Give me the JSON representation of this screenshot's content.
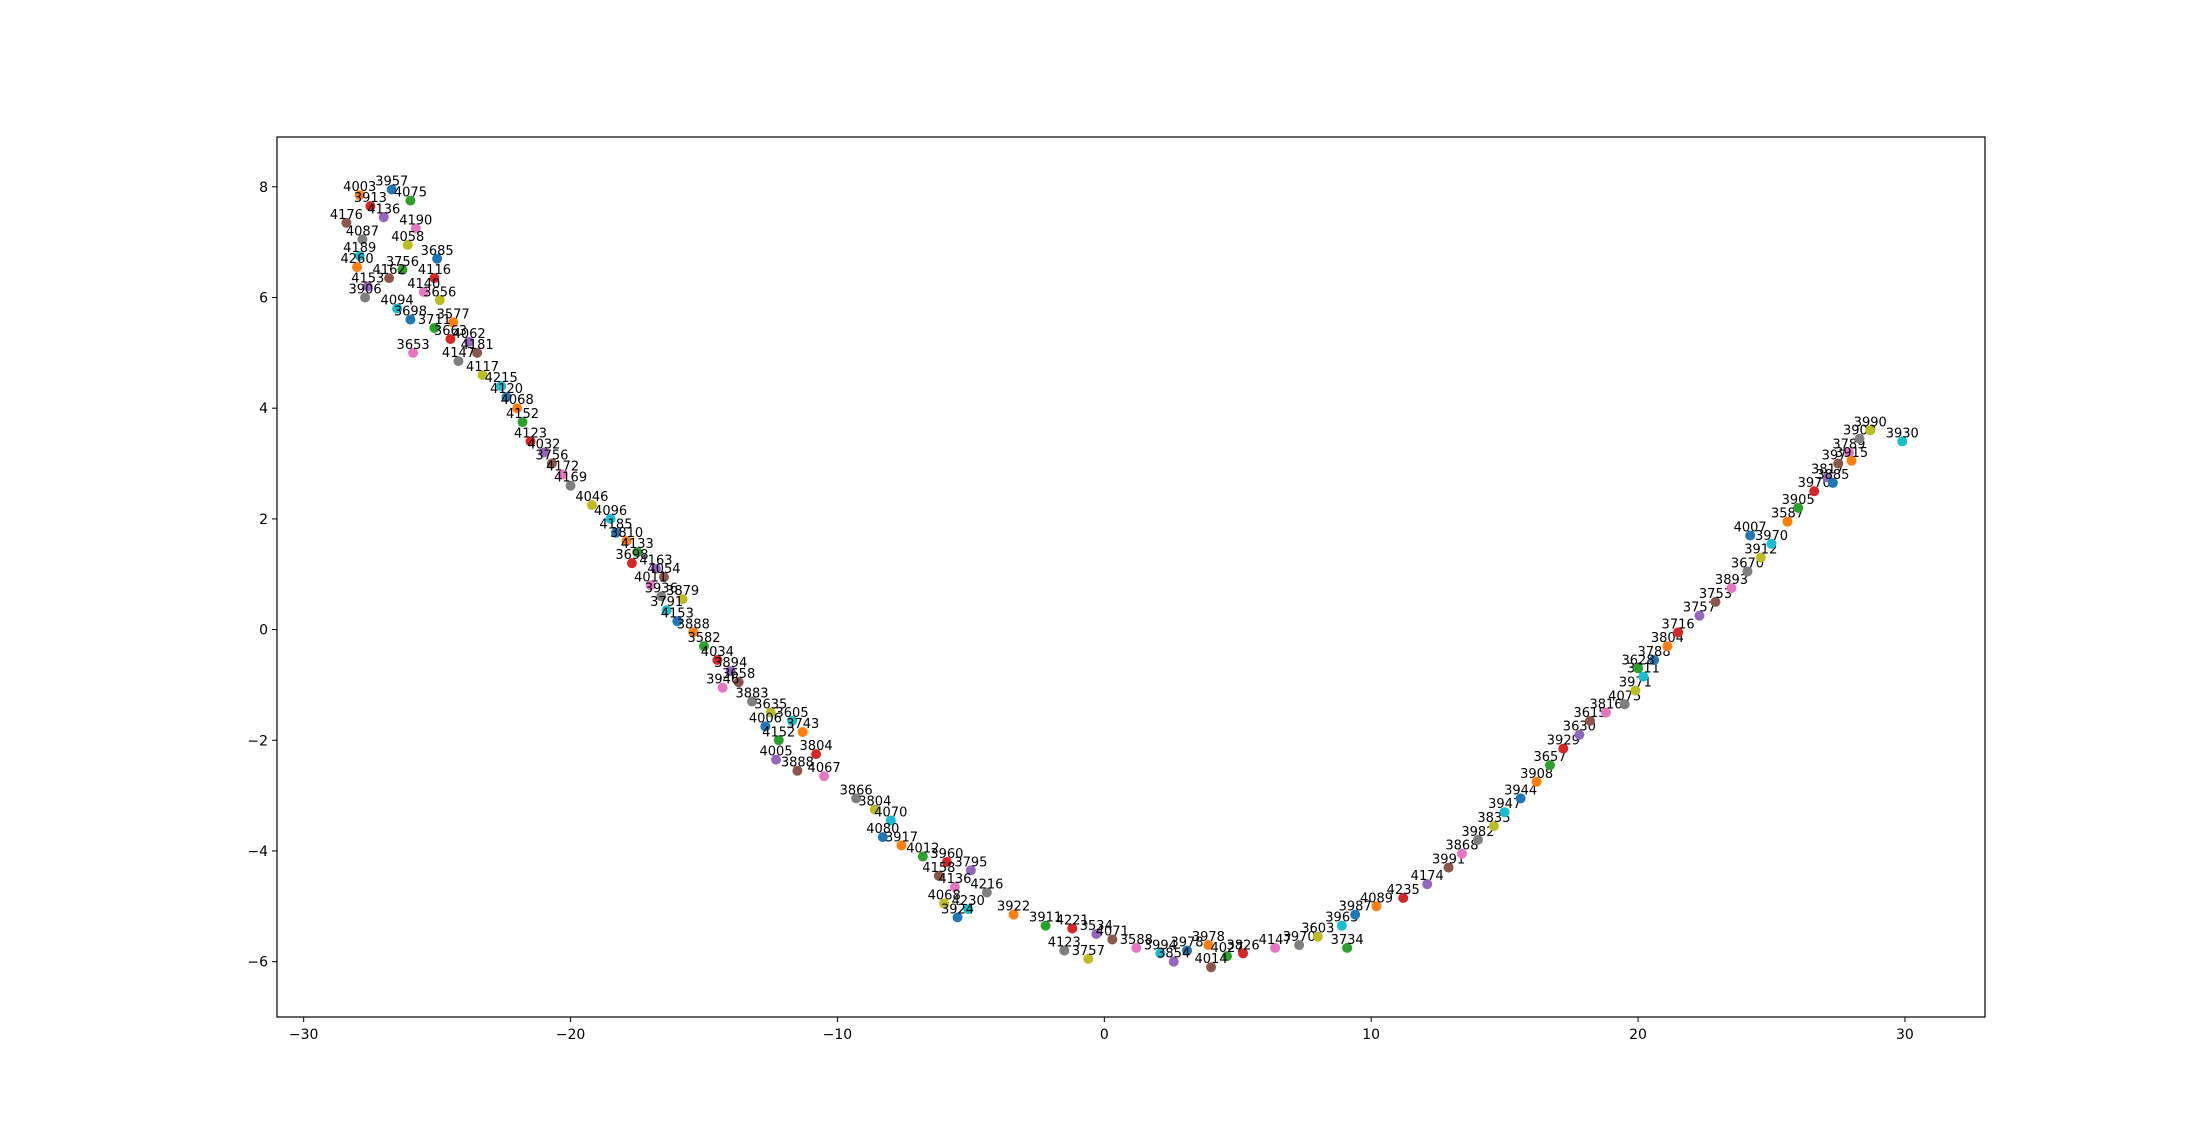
{
  "chart_data": {
    "type": "scatter",
    "title": "",
    "xlabel": "",
    "ylabel": "",
    "xlim": [
      -31,
      33
    ],
    "ylim": [
      -7,
      8.9
    ],
    "x_ticks": [
      -30,
      -20,
      -10,
      0,
      10,
      20,
      30
    ],
    "y_ticks": [
      -6,
      -4,
      -2,
      0,
      2,
      4,
      6,
      8
    ],
    "grid": false,
    "legend": "none",
    "palette": [
      "#1f77b4",
      "#ff7f0e",
      "#2ca02c",
      "#d62728",
      "#9467bd",
      "#8c564b",
      "#e377c2",
      "#7f7f7f",
      "#bcbd22",
      "#17becf"
    ],
    "points": [
      {
        "x": -26.7,
        "y": 7.95,
        "label": "3957"
      },
      {
        "x": -27.9,
        "y": 7.85,
        "label": "4003"
      },
      {
        "x": -26.0,
        "y": 7.75,
        "label": "4075"
      },
      {
        "x": -27.5,
        "y": 7.65,
        "label": "3913"
      },
      {
        "x": -27.0,
        "y": 7.45,
        "label": "4136"
      },
      {
        "x": -28.4,
        "y": 7.35,
        "label": "4176"
      },
      {
        "x": -25.8,
        "y": 7.25,
        "label": "4190"
      },
      {
        "x": -27.8,
        "y": 7.05,
        "label": "4087"
      },
      {
        "x": -26.1,
        "y": 6.95,
        "label": "4058"
      },
      {
        "x": -27.9,
        "y": 6.75,
        "label": "4189"
      },
      {
        "x": -25.0,
        "y": 6.7,
        "label": "3685"
      },
      {
        "x": -28.0,
        "y": 6.55,
        "label": "4260"
      },
      {
        "x": -26.3,
        "y": 6.5,
        "label": "3756"
      },
      {
        "x": -25.1,
        "y": 6.35,
        "label": "4116"
      },
      {
        "x": -27.6,
        "y": 6.2,
        "label": "4153"
      },
      {
        "x": -26.8,
        "y": 6.35,
        "label": "4162"
      },
      {
        "x": -25.5,
        "y": 6.1,
        "label": "4140"
      },
      {
        "x": -27.7,
        "y": 6.0,
        "label": "3906"
      },
      {
        "x": -24.9,
        "y": 5.95,
        "label": "3656"
      },
      {
        "x": -26.5,
        "y": 5.8,
        "label": "4094"
      },
      {
        "x": -26.0,
        "y": 5.6,
        "label": "3698"
      },
      {
        "x": -24.4,
        "y": 5.55,
        "label": "3577"
      },
      {
        "x": -25.1,
        "y": 5.45,
        "label": "3711"
      },
      {
        "x": -24.5,
        "y": 5.25,
        "label": "3663"
      },
      {
        "x": -23.8,
        "y": 5.2,
        "label": "4062"
      },
      {
        "x": -23.5,
        "y": 5.0,
        "label": "4181"
      },
      {
        "x": -25.9,
        "y": 5.0,
        "label": "3653"
      },
      {
        "x": -24.2,
        "y": 4.85,
        "label": "4147"
      },
      {
        "x": -23.3,
        "y": 4.6,
        "label": "4117"
      },
      {
        "x": -22.6,
        "y": 4.4,
        "label": "4215"
      },
      {
        "x": -22.4,
        "y": 4.2,
        "label": "4120"
      },
      {
        "x": -22.0,
        "y": 4.0,
        "label": "4068"
      },
      {
        "x": -21.8,
        "y": 3.75,
        "label": "4152"
      },
      {
        "x": -21.5,
        "y": 3.4,
        "label": "4123"
      },
      {
        "x": -21.0,
        "y": 3.2,
        "label": "4032"
      },
      {
        "x": -20.7,
        "y": 3.0,
        "label": "3756"
      },
      {
        "x": -20.3,
        "y": 2.8,
        "label": "4172"
      },
      {
        "x": -20.0,
        "y": 2.6,
        "label": "4169"
      },
      {
        "x": -19.2,
        "y": 2.25,
        "label": "4046"
      },
      {
        "x": -18.5,
        "y": 2.0,
        "label": "4096"
      },
      {
        "x": -18.3,
        "y": 1.75,
        "label": "4185"
      },
      {
        "x": -17.9,
        "y": 1.6,
        "label": "3810"
      },
      {
        "x": -17.5,
        "y": 1.4,
        "label": "4133"
      },
      {
        "x": -17.7,
        "y": 1.2,
        "label": "3698"
      },
      {
        "x": -16.8,
        "y": 1.1,
        "label": "4163"
      },
      {
        "x": -16.5,
        "y": 0.95,
        "label": "4054"
      },
      {
        "x": -17.0,
        "y": 0.8,
        "label": "4011"
      },
      {
        "x": -16.6,
        "y": 0.6,
        "label": "3936"
      },
      {
        "x": -15.8,
        "y": 0.55,
        "label": "3879"
      },
      {
        "x": -16.4,
        "y": 0.35,
        "label": "3791"
      },
      {
        "x": -16.0,
        "y": 0.15,
        "label": "4153"
      },
      {
        "x": -15.4,
        "y": -0.05,
        "label": "3888"
      },
      {
        "x": -15.0,
        "y": -0.3,
        "label": "3582"
      },
      {
        "x": -14.5,
        "y": -0.55,
        "label": "4034"
      },
      {
        "x": -14.0,
        "y": -0.75,
        "label": "3894"
      },
      {
        "x": -13.7,
        "y": -0.95,
        "label": "3658"
      },
      {
        "x": -14.3,
        "y": -1.05,
        "label": "3946"
      },
      {
        "x": -13.2,
        "y": -1.3,
        "label": "3883"
      },
      {
        "x": -12.5,
        "y": -1.5,
        "label": "3635"
      },
      {
        "x": -11.7,
        "y": -1.65,
        "label": "3605"
      },
      {
        "x": -12.7,
        "y": -1.75,
        "label": "4006"
      },
      {
        "x": -11.3,
        "y": -1.85,
        "label": "3743"
      },
      {
        "x": -12.2,
        "y": -2.0,
        "label": "4152"
      },
      {
        "x": -10.8,
        "y": -2.25,
        "label": "3804"
      },
      {
        "x": -12.3,
        "y": -2.35,
        "label": "4005"
      },
      {
        "x": -11.5,
        "y": -2.55,
        "label": "3888"
      },
      {
        "x": -10.5,
        "y": -2.65,
        "label": "4067"
      },
      {
        "x": -9.3,
        "y": -3.05,
        "label": "3866"
      },
      {
        "x": -8.6,
        "y": -3.25,
        "label": "3804"
      },
      {
        "x": -8.0,
        "y": -3.45,
        "label": "4070"
      },
      {
        "x": -8.3,
        "y": -3.75,
        "label": "4080"
      },
      {
        "x": -7.6,
        "y": -3.9,
        "label": "3917"
      },
      {
        "x": -6.8,
        "y": -4.1,
        "label": "4012"
      },
      {
        "x": -5.9,
        "y": -4.2,
        "label": "3960"
      },
      {
        "x": -5.0,
        "y": -4.35,
        "label": "3795"
      },
      {
        "x": -6.2,
        "y": -4.45,
        "label": "4158"
      },
      {
        "x": -5.6,
        "y": -4.65,
        "label": "4136"
      },
      {
        "x": -4.4,
        "y": -4.75,
        "label": "4216"
      },
      {
        "x": -6.0,
        "y": -4.95,
        "label": "4068"
      },
      {
        "x": -5.1,
        "y": -5.05,
        "label": "4230"
      },
      {
        "x": -5.5,
        "y": -5.2,
        "label": "3924"
      },
      {
        "x": -3.4,
        "y": -5.15,
        "label": "3922"
      },
      {
        "x": -2.2,
        "y": -5.35,
        "label": "3911"
      },
      {
        "x": -1.2,
        "y": -5.4,
        "label": "4221"
      },
      {
        "x": -0.3,
        "y": -5.5,
        "label": "3534"
      },
      {
        "x": 0.3,
        "y": -5.6,
        "label": "4071"
      },
      {
        "x": 1.2,
        "y": -5.75,
        "label": "3588"
      },
      {
        "x": -1.5,
        "y": -5.8,
        "label": "4123"
      },
      {
        "x": -0.6,
        "y": -5.95,
        "label": "3757"
      },
      {
        "x": 2.1,
        "y": -5.85,
        "label": "3994"
      },
      {
        "x": 3.1,
        "y": -5.8,
        "label": "3978"
      },
      {
        "x": 3.9,
        "y": -5.7,
        "label": "3978"
      },
      {
        "x": 4.6,
        "y": -5.9,
        "label": "4027"
      },
      {
        "x": 5.2,
        "y": -5.85,
        "label": "3826"
      },
      {
        "x": 2.6,
        "y": -6.0,
        "label": "3854"
      },
      {
        "x": 4.0,
        "y": -6.1,
        "label": "4014"
      },
      {
        "x": 6.4,
        "y": -5.75,
        "label": "4147"
      },
      {
        "x": 7.3,
        "y": -5.7,
        "label": "3970"
      },
      {
        "x": 8.0,
        "y": -5.55,
        "label": "3603"
      },
      {
        "x": 8.9,
        "y": -5.35,
        "label": "3963"
      },
      {
        "x": 9.4,
        "y": -5.15,
        "label": "3987"
      },
      {
        "x": 10.2,
        "y": -5.0,
        "label": "4089"
      },
      {
        "x": 9.1,
        "y": -5.75,
        "label": "3734"
      },
      {
        "x": 11.2,
        "y": -4.85,
        "label": "4235"
      },
      {
        "x": 12.1,
        "y": -4.6,
        "label": "4174"
      },
      {
        "x": 12.9,
        "y": -4.3,
        "label": "3991"
      },
      {
        "x": 13.4,
        "y": -4.05,
        "label": "3868"
      },
      {
        "x": 14.0,
        "y": -3.8,
        "label": "3982"
      },
      {
        "x": 14.6,
        "y": -3.55,
        "label": "3835"
      },
      {
        "x": 15.0,
        "y": -3.3,
        "label": "3947"
      },
      {
        "x": 15.6,
        "y": -3.05,
        "label": "3944"
      },
      {
        "x": 16.2,
        "y": -2.75,
        "label": "3908"
      },
      {
        "x": 16.7,
        "y": -2.45,
        "label": "3657"
      },
      {
        "x": 17.2,
        "y": -2.15,
        "label": "3929"
      },
      {
        "x": 17.8,
        "y": -1.9,
        "label": "3630"
      },
      {
        "x": 18.2,
        "y": -1.65,
        "label": "3615"
      },
      {
        "x": 18.8,
        "y": -1.5,
        "label": "3816"
      },
      {
        "x": 19.5,
        "y": -1.35,
        "label": "4075"
      },
      {
        "x": 19.9,
        "y": -1.1,
        "label": "3971"
      },
      {
        "x": 20.2,
        "y": -0.85,
        "label": "3811"
      },
      {
        "x": 20.6,
        "y": -0.55,
        "label": "3788"
      },
      {
        "x": 21.1,
        "y": -0.3,
        "label": "3804"
      },
      {
        "x": 20.0,
        "y": -0.7,
        "label": "3628"
      },
      {
        "x": 21.5,
        "y": -0.05,
        "label": "3716"
      },
      {
        "x": 22.3,
        "y": 0.25,
        "label": "3757"
      },
      {
        "x": 22.9,
        "y": 0.5,
        "label": "3753"
      },
      {
        "x": 23.5,
        "y": 0.75,
        "label": "3893"
      },
      {
        "x": 24.1,
        "y": 1.05,
        "label": "3670"
      },
      {
        "x": 24.6,
        "y": 1.3,
        "label": "3912"
      },
      {
        "x": 25.0,
        "y": 1.55,
        "label": "3970"
      },
      {
        "x": 24.2,
        "y": 1.7,
        "label": "4007"
      },
      {
        "x": 25.6,
        "y": 1.95,
        "label": "3587"
      },
      {
        "x": 26.0,
        "y": 2.2,
        "label": "3905"
      },
      {
        "x": 26.6,
        "y": 2.5,
        "label": "3970"
      },
      {
        "x": 27.1,
        "y": 2.75,
        "label": "3817"
      },
      {
        "x": 27.5,
        "y": 3.0,
        "label": "3974"
      },
      {
        "x": 27.9,
        "y": 3.2,
        "label": "3789"
      },
      {
        "x": 28.3,
        "y": 3.45,
        "label": "3909"
      },
      {
        "x": 28.7,
        "y": 3.6,
        "label": "3990"
      },
      {
        "x": 29.9,
        "y": 3.4,
        "label": "3930"
      },
      {
        "x": 27.3,
        "y": 2.65,
        "label": "3885"
      },
      {
        "x": 28.0,
        "y": 3.05,
        "label": "3915"
      }
    ]
  }
}
